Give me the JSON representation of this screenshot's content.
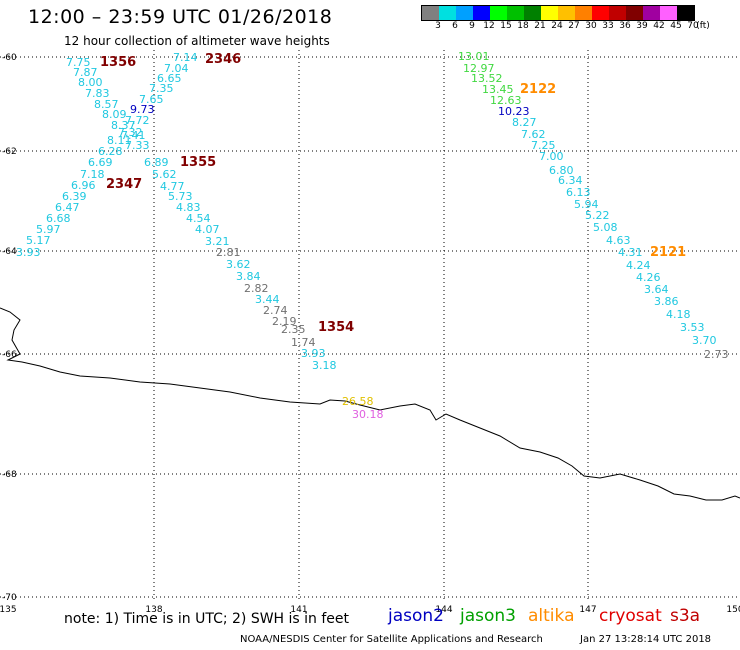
{
  "header": {
    "title": "12:00 – 23:59 UTC 01/26/2018",
    "subtitle": "12 hour collection of altimeter wave heights"
  },
  "color_scale": {
    "colors": [
      "#808080",
      "#00e0e0",
      "#00a0ff",
      "#0000ff",
      "#00ff00",
      "#00c000",
      "#008000",
      "#ffff00",
      "#ffc000",
      "#ff8000",
      "#ff0000",
      "#c00000",
      "#800000",
      "#a000a0",
      "#ff60ff",
      "#000000"
    ],
    "labels": [
      "3",
      "6",
      "9",
      "12",
      "15",
      "18",
      "21",
      "24",
      "27",
      "30",
      "33",
      "36",
      "39",
      "42",
      "45",
      "70",
      "(ft)"
    ]
  },
  "map": {
    "lat_labels": [
      "-60",
      "-62",
      "-64",
      "-66",
      "-68",
      "-70"
    ],
    "lon_labels": [
      "135",
      "138",
      "141",
      "144",
      "147",
      "150"
    ]
  },
  "tracks": {
    "jason3_2122": [
      "13.01",
      "12.97",
      "13.52",
      "13.45",
      "12.63",
      "10.23",
      "8.27",
      "7.62",
      "7.25",
      "7.00",
      "6.80",
      "6.34",
      "6.13",
      "5.94",
      "5.22",
      "5.08",
      "4.63",
      "4.31",
      "4.24",
      "4.26",
      "3.64",
      "3.86",
      "4.18",
      "3.53",
      "3.70",
      "2.73"
    ],
    "track_1355": [
      "7.14",
      "7.04",
      "6.65",
      "7.35",
      "7.65",
      "9.73",
      "7.72",
      "7.41",
      "7.33",
      "6.89",
      "5.62",
      "4.77",
      "5.73",
      "4.83",
      "4.54",
      "4.07",
      "3.21",
      "2.81",
      "3.62",
      "3.84",
      "2.82",
      "3.44",
      "2.74",
      "2.19",
      "2.35",
      "1.74",
      "3.93",
      "3.18"
    ],
    "track_2347": [
      "7.75",
      "7.87",
      "8.00",
      "7.83",
      "8.57",
      "8.09",
      "8.37",
      "7.32",
      "8.11",
      "6.28",
      "6.69",
      "7.18",
      "6.96",
      "6.39",
      "6.47",
      "6.68",
      "5.97",
      "5.17",
      "3.93"
    ],
    "extra": [
      "26.58",
      "30.18"
    ]
  },
  "pass_labels": [
    "1356",
    "2346",
    "1355",
    "2347",
    "1354",
    "2122",
    "2121"
  ],
  "footer": {
    "note": "note: 1) Time is in UTC; 2) SWH is in feet",
    "legend": [
      {
        "name": "jason2",
        "color": "#0000c0"
      },
      {
        "name": "jason3",
        "color": "#00a000"
      },
      {
        "name": "altika",
        "color": "#ff8c00"
      },
      {
        "name": "cryosat",
        "color": "#e00000"
      },
      {
        "name": "s3a",
        "color": "#c00000"
      }
    ],
    "credit": "NOAA/NESDIS Center for Satellite Applications and Research",
    "timestamp": "Jan 27 13:28:14 UTC 2018"
  }
}
